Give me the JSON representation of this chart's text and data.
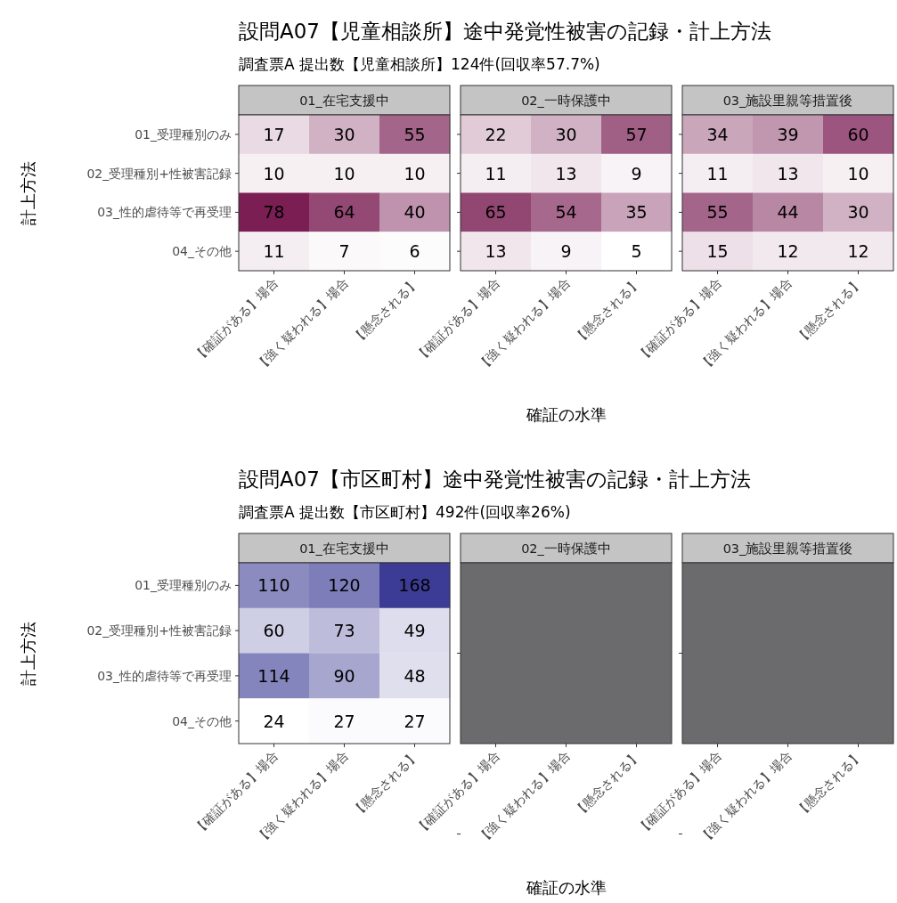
{
  "chart_data": [
    {
      "type": "other",
      "title": "設問A07【児童相談所】途中発覚性被害の記録・計上方法",
      "subtitle": "調査票A 提出数【児童相談所】124件(回収率57.7%)"
    },
    {
      "type": "heatmap",
      "title": "01_在宅支援中",
      "ylabel": "計上方法",
      "categories": [
        "【確証がある】場合",
        "【強く疑われる】場合",
        "【懸念される】"
      ],
      "y_categories": [
        "01_受理種別のみ",
        "02_受理種別+性被害記録",
        "03_性的虐待等で再受理",
        "04_その他"
      ],
      "cells": [
        [
          17,
          30,
          55
        ],
        [
          10,
          10,
          10
        ],
        [
          78,
          64,
          40
        ],
        [
          11,
          7,
          6
        ]
      ],
      "data_labels": true
    },
    {
      "type": "heatmap",
      "title": "02_一時保護中",
      "xlabel": "確証の水準",
      "tick_labels": "x",
      "categories": [
        "【確証がある】場合",
        "【強く疑われる】場合",
        "【懸念される】"
      ],
      "y_categories": [
        null,
        null,
        null,
        null
      ],
      "cells": [
        [
          22,
          30,
          57
        ],
        [
          11,
          13,
          9
        ],
        [
          65,
          54,
          35
        ],
        [
          13,
          9,
          5
        ]
      ],
      "data_labels": true
    },
    {
      "type": "heatmap",
      "title": "03_施設里親等措置後",
      "tick_labels": "x",
      "categories": [
        "【確証がある】場合",
        "【強く疑われる】場合",
        "【懸念される】"
      ],
      "y_categories": [
        null,
        null,
        null,
        null
      ],
      "cells": [
        [
          34,
          39,
          60
        ],
        [
          11,
          13,
          10
        ],
        [
          55,
          44,
          30
        ],
        [
          15,
          12,
          12
        ]
      ],
      "data_labels": true
    },
    {
      "type": "other",
      "title": "設問A07【市区町村】途中発覚性被害の記録・計上方法",
      "subtitle": "調査票A 提出数【市区町村】492件(回収率26%)"
    },
    {
      "type": "heatmap",
      "title": "01_在宅支援中",
      "ylabel": "計上方法",
      "categories": [
        "【確証がある】場合",
        "【強く疑われる】場合",
        "【懸念される】"
      ],
      "y_categories": [
        "01_受理種別のみ",
        "02_受理種別+性被害記録",
        "03_性的虐待等で再受理",
        "04_その他"
      ],
      "cells": [
        [
          110,
          120,
          168
        ],
        [
          60,
          73,
          49
        ],
        [
          114,
          90,
          48
        ],
        [
          24,
          27,
          27
        ]
      ],
      "data_labels": true
    },
    {
      "type": "other",
      "title": "02_一時保護中",
      "xlabel": "確証の水準",
      "categories": [
        "【確証がある】場合",
        "【強く疑われる】場合",
        "【懸念される】"
      ]
    },
    {
      "type": "other",
      "title": "03_施設里親等措置後",
      "categories": [
        "【確証がある】場合",
        "【強く疑われる】場合",
        "【懸念される】"
      ]
    }
  ]
}
